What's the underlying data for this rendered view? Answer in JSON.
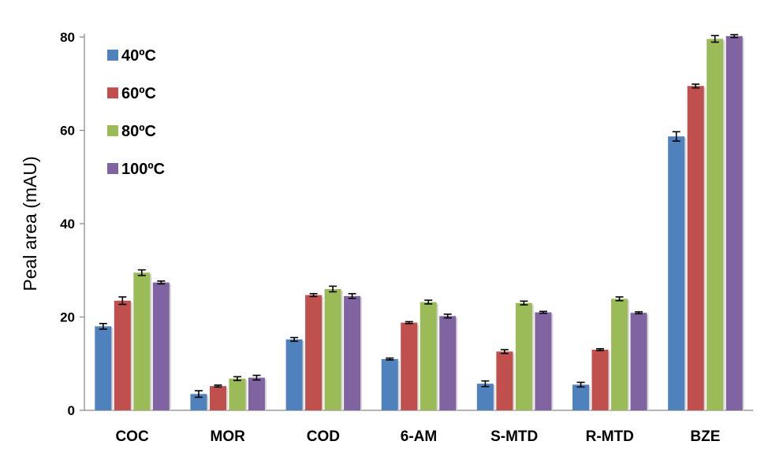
{
  "chart_data": {
    "type": "bar",
    "title": "",
    "xlabel": "",
    "ylabel": "Peal area (mAU)",
    "ylim": [
      0,
      80
    ],
    "yticks": [
      "0",
      "20",
      "40",
      "60",
      "80"
    ],
    "grid": false,
    "legend_position": "top-left",
    "categories": [
      "COC",
      "MOR",
      "COD",
      "6-AM",
      "S-MTD",
      "R-MTD",
      "BZE"
    ],
    "series": [
      {
        "name": "40ºC",
        "color": "#4F81BD",
        "values": [
          18.0,
          3.5,
          15.2,
          11.0,
          5.7,
          5.5,
          58.7
        ],
        "errors": [
          0.6,
          0.7,
          0.4,
          0.2,
          0.6,
          0.5,
          1.0
        ]
      },
      {
        "name": "60ºC",
        "color": "#C0504D",
        "values": [
          23.5,
          5.2,
          24.7,
          18.8,
          12.6,
          13.0,
          69.5
        ],
        "errors": [
          0.8,
          0.2,
          0.3,
          0.2,
          0.4,
          0.2,
          0.4
        ]
      },
      {
        "name": "80ºC",
        "color": "#9BBB59",
        "values": [
          29.5,
          6.8,
          26.0,
          23.2,
          23.0,
          23.9,
          79.6
        ],
        "errors": [
          0.6,
          0.4,
          0.6,
          0.4,
          0.4,
          0.4,
          0.7
        ]
      },
      {
        "name": "100ºC",
        "color": "#8064A2",
        "values": [
          27.4,
          7.0,
          24.5,
          20.2,
          21.0,
          20.9,
          80.2
        ],
        "errors": [
          0.3,
          0.5,
          0.5,
          0.4,
          0.2,
          0.2,
          0.3
        ]
      }
    ]
  }
}
